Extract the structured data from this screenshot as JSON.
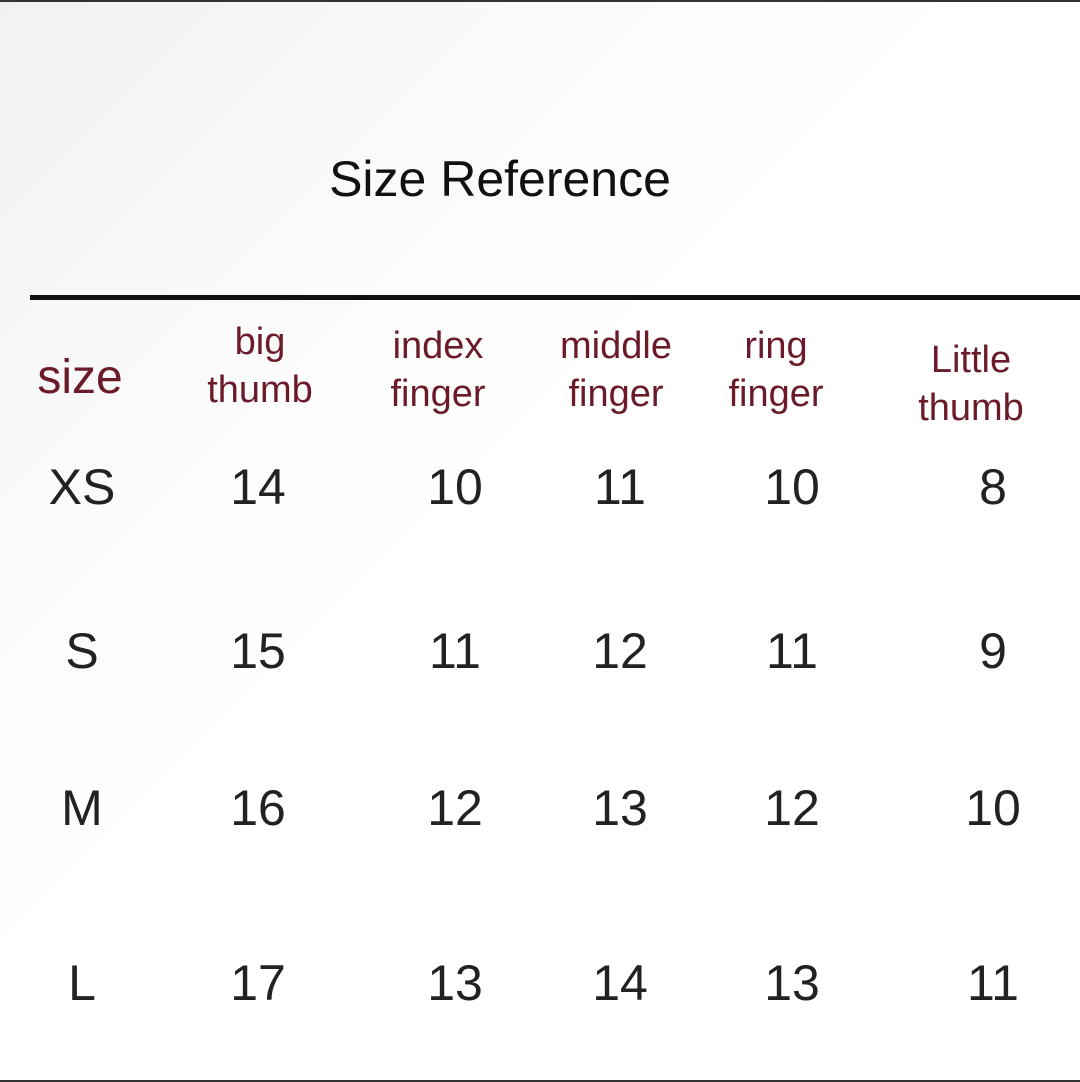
{
  "title": "Size Reference",
  "header_color": "#6b1a2a",
  "columns": [
    {
      "line1": "size",
      "line2": ""
    },
    {
      "line1": "big",
      "line2": "thumb"
    },
    {
      "line1": "index",
      "line2": "finger"
    },
    {
      "line1": "middle",
      "line2": "finger"
    },
    {
      "line1": "ring",
      "line2": "finger"
    },
    {
      "line1": "Little",
      "line2": "thumb"
    }
  ],
  "rows": [
    [
      "XS",
      "14",
      "10",
      "11",
      "10",
      "8"
    ],
    [
      "S",
      "15",
      "11",
      "12",
      "11",
      "9"
    ],
    [
      "M",
      "16",
      "12",
      "13",
      "12",
      "10"
    ],
    [
      "L",
      "17",
      "13",
      "14",
      "13",
      "11"
    ]
  ]
}
